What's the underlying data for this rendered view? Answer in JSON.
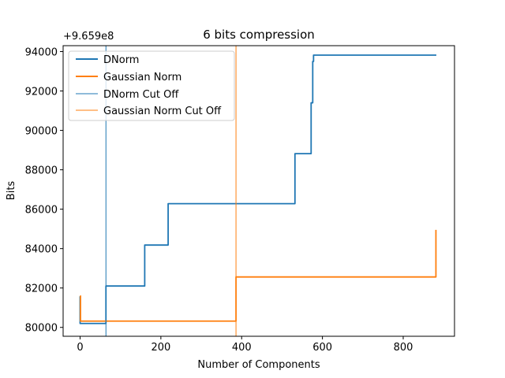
{
  "chart_data": {
    "type": "line",
    "title": "6 bits compression",
    "xlabel": "Number of Components",
    "ylabel": "Bits",
    "y_offset_label": "+9.659e8",
    "y_offset": 965900000,
    "xlim": [
      -42,
      927
    ],
    "ylim": [
      79550,
      94300
    ],
    "xticks": [
      0,
      200,
      400,
      600,
      800
    ],
    "yticks": [
      80000,
      82000,
      84000,
      86000,
      88000,
      90000,
      92000,
      94000
    ],
    "ytick_labels": [
      "80000",
      "82000",
      "84000",
      "86000",
      "88000",
      "90000",
      "92000",
      "94000"
    ],
    "grid": false,
    "legend_position": "top-left",
    "series": [
      {
        "name": "DNorm",
        "color": "#1f77b4",
        "style": "line-thick",
        "x": [
          0,
          0,
          64,
          64,
          160,
          160,
          218,
          218,
          532,
          532,
          572,
          572,
          576,
          576,
          578,
          578,
          882
        ],
        "y": [
          81580,
          80200,
          80200,
          82100,
          82100,
          84180,
          84180,
          86280,
          86280,
          88820,
          88820,
          91400,
          91400,
          93500,
          93500,
          93820,
          93820
        ]
      },
      {
        "name": "Gaussian Norm",
        "color": "#ff7f0e",
        "style": "line-thick",
        "x": [
          0,
          1,
          1,
          386,
          386,
          881,
          881
        ],
        "y": [
          81600,
          81600,
          80320,
          80320,
          82560,
          82560,
          84950
        ]
      },
      {
        "name": "DNorm Cut Off",
        "color": "#1f77b4",
        "style": "vline",
        "x": 64
      },
      {
        "name": "Gaussian Norm Cut Off",
        "color": "#ff7f0e",
        "style": "vline",
        "x": 386
      }
    ]
  }
}
